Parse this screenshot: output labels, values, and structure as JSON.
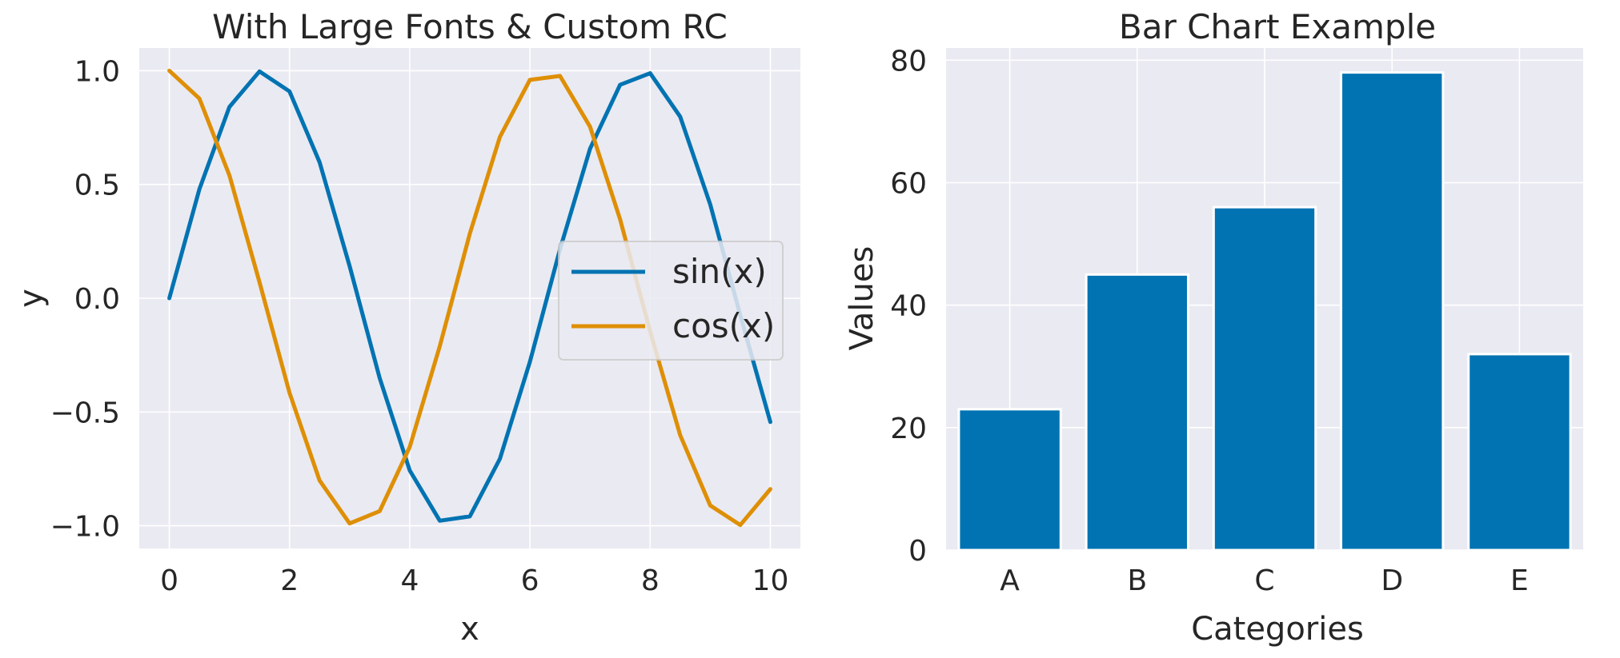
{
  "chart_data": [
    {
      "type": "line",
      "title": "With Large Fonts & Custom RC",
      "xlabel": "x",
      "ylabel": "y",
      "xlim": [
        -0.5,
        10.5
      ],
      "ylim": [
        -1.1,
        1.1
      ],
      "xticks": [
        0,
        2,
        4,
        6,
        8,
        10
      ],
      "xtick_labels": [
        "0",
        "2",
        "4",
        "6",
        "8",
        "10"
      ],
      "yticks": [
        1.0,
        0.5,
        0.0,
        -0.5,
        -1.0
      ],
      "ytick_labels": [
        "1.0",
        "0.5",
        "0.0",
        "−0.5",
        "−1.0"
      ],
      "grid": true,
      "legend_position": "center-right",
      "x": [
        0,
        0.5,
        1,
        1.5,
        2,
        2.5,
        3,
        3.5,
        4,
        4.5,
        5,
        5.5,
        6,
        6.5,
        7,
        7.5,
        8,
        8.5,
        9,
        9.5,
        10
      ],
      "series": [
        {
          "name": "sin(x)",
          "color": "#0173b2",
          "values": [
            0.0,
            0.479,
            0.841,
            0.997,
            0.909,
            0.598,
            0.141,
            -0.351,
            -0.757,
            -0.978,
            -0.959,
            -0.706,
            -0.279,
            0.215,
            0.657,
            0.938,
            0.989,
            0.798,
            0.412,
            -0.075,
            -0.544
          ]
        },
        {
          "name": "cos(x)",
          "color": "#de8f05",
          "values": [
            1.0,
            0.878,
            0.54,
            0.071,
            -0.416,
            -0.801,
            -0.99,
            -0.936,
            -0.654,
            -0.211,
            0.284,
            0.709,
            0.96,
            0.977,
            0.754,
            0.347,
            -0.146,
            -0.602,
            -0.911,
            -0.997,
            -0.839
          ]
        }
      ]
    },
    {
      "type": "bar",
      "title": "Bar Chart Example",
      "xlabel": "Categories",
      "ylabel": "Values",
      "categories": [
        "A",
        "B",
        "C",
        "D",
        "E"
      ],
      "values": [
        23,
        45,
        56,
        78,
        32
      ],
      "color": "#0173b2",
      "ylim": [
        0,
        82
      ],
      "yticks": [
        0,
        20,
        40,
        60,
        80
      ],
      "ytick_labels": [
        "0",
        "20",
        "40",
        "60",
        "80"
      ],
      "grid": true
    }
  ]
}
